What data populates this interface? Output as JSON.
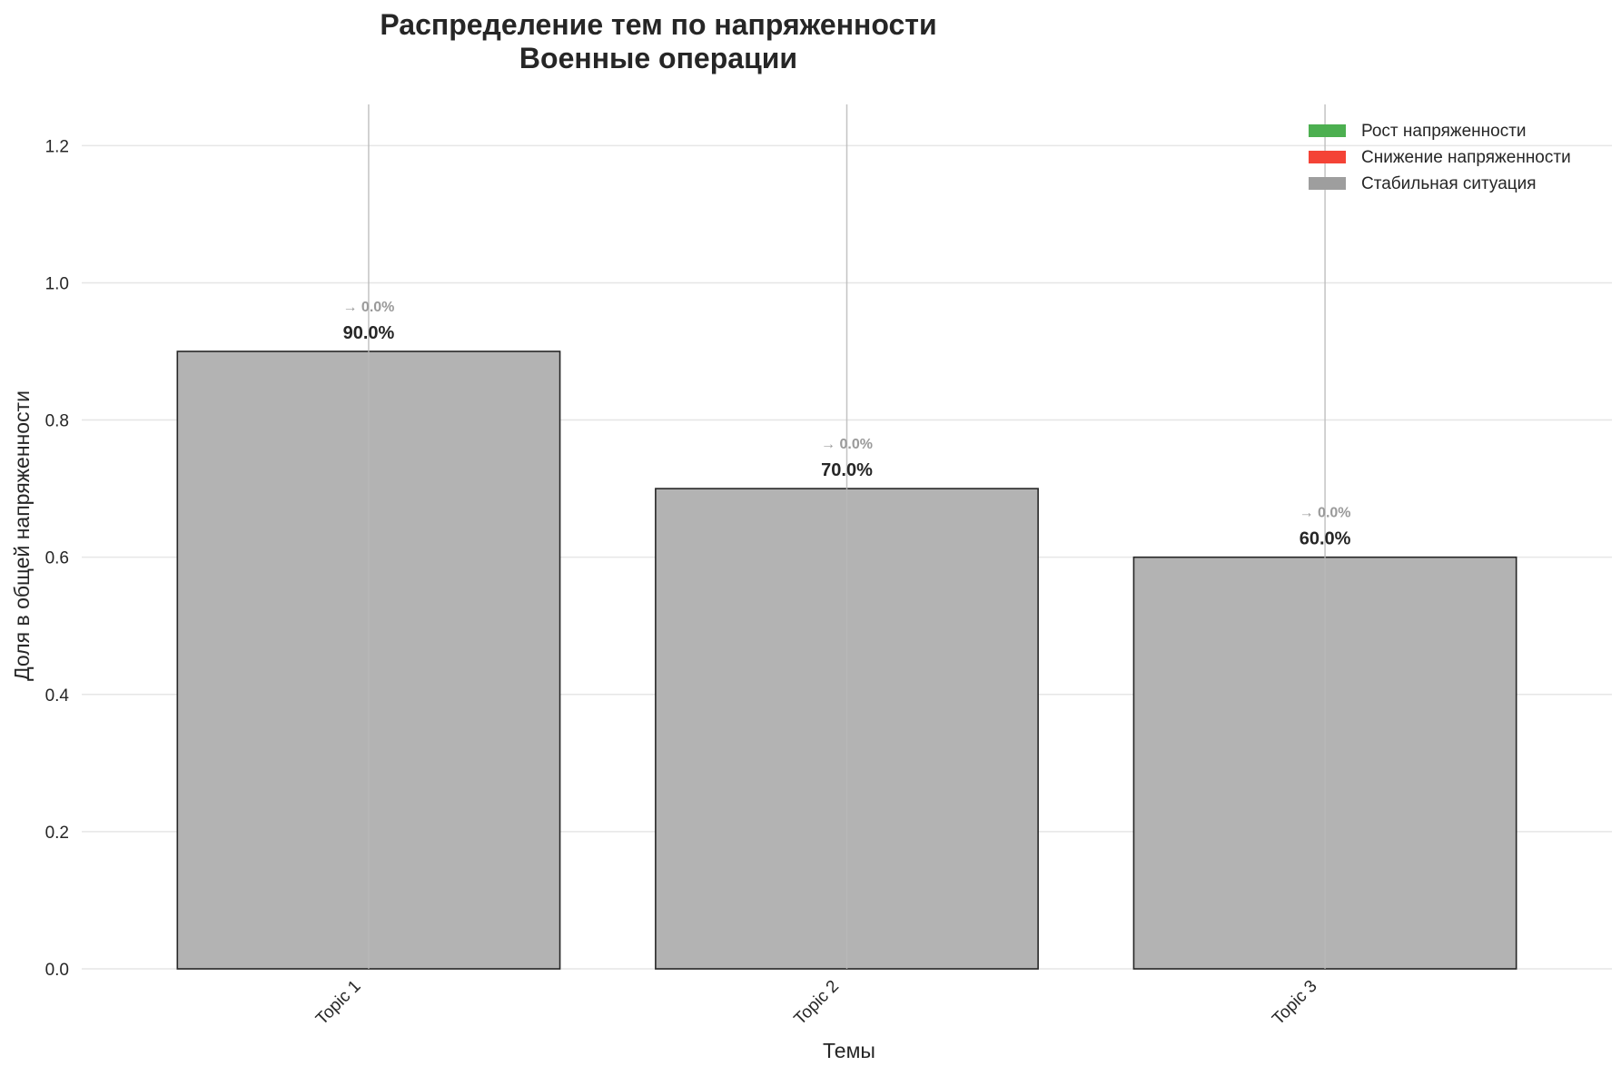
{
  "chart_data": {
    "type": "bar",
    "title_line1": "Распределение тем по напряженности",
    "title_line2": "Военные операции",
    "xlabel": "Темы",
    "ylabel": "Доля в общей напряженности",
    "categories": [
      "Topic 1",
      "Topic 2",
      "Topic 3"
    ],
    "values": [
      0.9,
      0.7,
      0.6
    ],
    "value_labels": [
      "90.0%",
      "70.0%",
      "60.0%"
    ],
    "change_labels": [
      "→ 0.0%",
      "→ 0.0%",
      "→ 0.0%"
    ],
    "bar_color": "#b3b3b3",
    "bar_edge_color": "#262626",
    "ylim": [
      0,
      1.26
    ],
    "yticks": [
      0.0,
      0.2,
      0.4,
      0.6,
      0.8,
      1.0,
      1.2
    ],
    "ytick_labels": [
      "0.0",
      "0.2",
      "0.4",
      "0.6",
      "0.8",
      "1.0",
      "1.2"
    ],
    "grid": true,
    "legend_position": "top-right",
    "legend": [
      {
        "label": "Рост напряженности",
        "color": "#4caf50"
      },
      {
        "label": "Снижение напряженности",
        "color": "#f44336"
      },
      {
        "label": "Стабильная ситуация",
        "color": "#9e9e9e"
      }
    ]
  }
}
